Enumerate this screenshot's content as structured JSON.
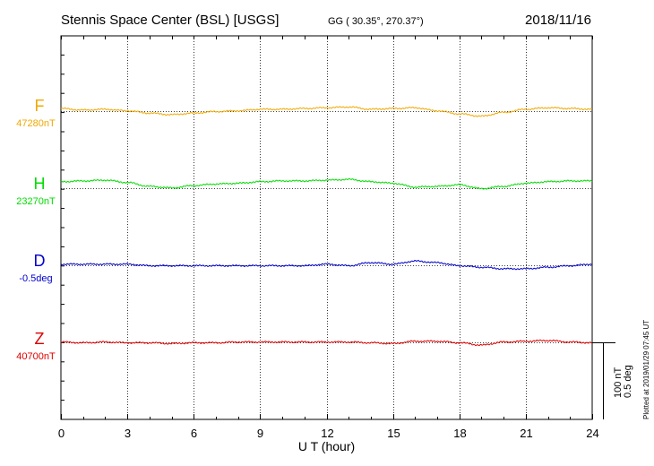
{
  "header": {
    "station": "Stennis Space Center (BSL)  [USGS]",
    "coords": "GG ( 30.35°, 270.37°)",
    "date": "2018/11/16"
  },
  "plotted_note": "Plotted at 2019/01/29 07:45 UT",
  "scale_labels": [
    "100 nT",
    "0.5 deg"
  ],
  "chart_data": {
    "type": "line",
    "xlabel": "U T (hour)",
    "xlim": [
      0,
      24
    ],
    "x_ticks": [
      0,
      3,
      6,
      9,
      12,
      15,
      18,
      21,
      24
    ],
    "x_tick_labels": [
      "0",
      "3",
      "6",
      "9",
      "12",
      "15",
      "18",
      "21",
      "24"
    ],
    "grid": true,
    "y_scale_nT_per_panel": 100,
    "y_scale_deg_per_panel": 0.5,
    "series": [
      {
        "name": "F",
        "base_label": "47280nT",
        "color": "#f0a800",
        "x": [
          0,
          1,
          2,
          3,
          4,
          5,
          6,
          7,
          8,
          9,
          10,
          11,
          12,
          13,
          14,
          15,
          16,
          17,
          18,
          19,
          20,
          21,
          22,
          23,
          24
        ],
        "y": [
          4,
          2,
          3,
          1,
          -2,
          -4,
          -2,
          0,
          1,
          3,
          3,
          4,
          5,
          6,
          3,
          4,
          5,
          1,
          -3,
          -6,
          -1,
          3,
          5,
          4,
          3
        ]
      },
      {
        "name": "H",
        "base_label": "23270nT",
        "color": "#00dd00",
        "x": [
          0,
          1,
          2,
          3,
          4,
          5,
          6,
          7,
          8,
          9,
          10,
          11,
          12,
          13,
          14,
          15,
          16,
          17,
          18,
          19,
          20,
          21,
          22,
          23,
          24
        ],
        "y": [
          9,
          10,
          11,
          8,
          3,
          1,
          4,
          6,
          7,
          9,
          10,
          10,
          11,
          12,
          9,
          7,
          2,
          3,
          5,
          0,
          3,
          7,
          9,
          10,
          10
        ]
      },
      {
        "name": "D",
        "base_label": "-0.5deg",
        "color": "#0000cc",
        "x": [
          0,
          1,
          2,
          3,
          4,
          5,
          6,
          7,
          8,
          9,
          10,
          11,
          12,
          13,
          14,
          15,
          16,
          17,
          18,
          19,
          20,
          21,
          22,
          23,
          24
        ],
        "y": [
          0.01,
          0.01,
          0.01,
          0.01,
          0.0,
          0.0,
          0.0,
          0.0,
          0.0,
          0.0,
          0.0,
          0.0,
          0.01,
          0.0,
          0.02,
          0.01,
          0.03,
          0.02,
          0.0,
          -0.01,
          -0.02,
          -0.02,
          -0.01,
          0.0,
          0.01
        ],
        "unit": "deg"
      },
      {
        "name": "Z",
        "base_label": "40700nT",
        "color": "#dd0000",
        "x": [
          0,
          1,
          2,
          3,
          4,
          5,
          6,
          7,
          8,
          9,
          10,
          11,
          12,
          13,
          14,
          15,
          16,
          17,
          18,
          19,
          20,
          21,
          22,
          23,
          24
        ],
        "y": [
          1,
          0,
          1,
          0,
          0,
          -1,
          0,
          0,
          1,
          1,
          1,
          1,
          1,
          1,
          0,
          -1,
          2,
          2,
          0,
          -3,
          1,
          2,
          3,
          1,
          0
        ]
      }
    ]
  }
}
